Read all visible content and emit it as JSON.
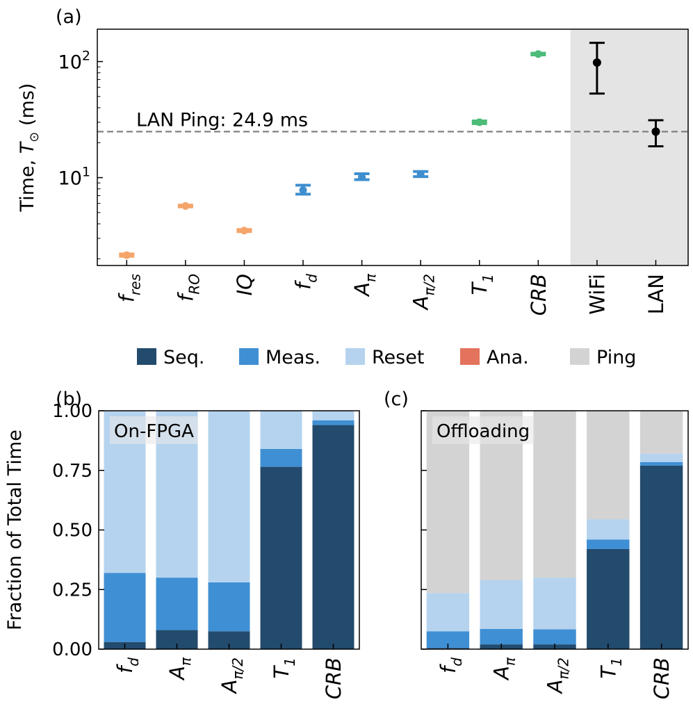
{
  "chart_data": [
    {
      "panel_label": "(a)",
      "type": "scatter",
      "xlabel": "",
      "ylabel_parts": [
        "Time, ",
        "T",
        "⊙",
        " (ms)"
      ],
      "yscale": "log",
      "ylim": [
        1.75,
        190
      ],
      "y_ticks": [
        {
          "value": 10,
          "base": "10",
          "exp": "1"
        },
        {
          "value": 100,
          "base": "10",
          "exp": "2"
        }
      ],
      "categories": [
        {
          "main": "f",
          "sub": "res",
          "italic": true
        },
        {
          "main": "f",
          "sub": "RO",
          "italic": true
        },
        {
          "main": "IQ",
          "sub": "",
          "italic": true
        },
        {
          "main": "f",
          "sub": "d",
          "italic": true
        },
        {
          "main": "A",
          "sub": "π",
          "italic": true
        },
        {
          "main": "A",
          "sub": "π/2",
          "italic": true
        },
        {
          "main": "T",
          "sub": "1",
          "italic": true
        },
        {
          "main": "CRB",
          "sub": "",
          "italic": true
        },
        {
          "main": "WiFi",
          "sub": "",
          "italic": false
        },
        {
          "main": "LAN",
          "sub": "",
          "italic": false
        }
      ],
      "points": [
        {
          "y": 2.15,
          "lo": 2.1,
          "hi": 2.2,
          "color": "#f5a46a"
        },
        {
          "y": 5.7,
          "lo": 5.6,
          "hi": 5.8,
          "color": "#f5a46a"
        },
        {
          "y": 3.5,
          "lo": 3.43,
          "hi": 3.57,
          "color": "#f5a46a"
        },
        {
          "y": 7.8,
          "lo": 7.2,
          "hi": 8.6,
          "color": "#3f8fcf"
        },
        {
          "y": 10.1,
          "lo": 9.6,
          "hi": 10.8,
          "color": "#3f8fcf"
        },
        {
          "y": 10.7,
          "lo": 10.2,
          "hi": 11.3,
          "color": "#3f8fcf"
        },
        {
          "y": 30.0,
          "lo": 29.2,
          "hi": 30.8,
          "color": "#4cbc78"
        },
        {
          "y": 116,
          "lo": 114,
          "hi": 118,
          "color": "#4cbc78"
        },
        {
          "y": 98,
          "lo": 53,
          "hi": 145,
          "color": "#000000"
        },
        {
          "y": 24.9,
          "lo": 18.6,
          "hi": 31.2,
          "color": "#000000"
        }
      ],
      "ping_line": {
        "value": 24.9,
        "label": "LAN Ping: 24.9 ms",
        "color": "#808080"
      },
      "shaded_categories": [
        "WiFi",
        "LAN"
      ]
    },
    {
      "panel_label": "(b)",
      "type": "bar",
      "stacked": true,
      "annotation": "On-FPGA",
      "ylabel": "Fraction of Total Time",
      "ylim": [
        0,
        1.0
      ],
      "y_ticks": [
        "0.00",
        "0.25",
        "0.50",
        "0.75",
        "1.00"
      ],
      "categories": [
        {
          "main": "f",
          "sub": "d"
        },
        {
          "main": "A",
          "sub": "π"
        },
        {
          "main": "A",
          "sub": "π/2"
        },
        {
          "main": "T",
          "sub": "1"
        },
        {
          "main": "CRB",
          "sub": ""
        }
      ],
      "series": [
        {
          "name": "Seq.",
          "color": "#234b6d",
          "values": [
            0.03,
            0.08,
            0.075,
            0.765,
            0.94
          ]
        },
        {
          "name": "Meas.",
          "color": "#3f8fd4",
          "values": [
            0.29,
            0.22,
            0.205,
            0.075,
            0.02
          ]
        },
        {
          "name": "Reset",
          "color": "#b5d3ee",
          "values": [
            0.68,
            0.7,
            0.72,
            0.16,
            0.04
          ]
        },
        {
          "name": "Ana.",
          "color": "#e3735c",
          "values": [
            0,
            0,
            0,
            0,
            0
          ]
        },
        {
          "name": "Ping",
          "color": "#d3d3d3",
          "values": [
            0,
            0,
            0,
            0,
            0
          ]
        }
      ]
    },
    {
      "panel_label": "(c)",
      "type": "bar",
      "stacked": true,
      "annotation": "Offloading",
      "ylim": [
        0,
        1.0
      ],
      "categories": [
        {
          "main": "f",
          "sub": "d"
        },
        {
          "main": "A",
          "sub": "π"
        },
        {
          "main": "A",
          "sub": "π/2"
        },
        {
          "main": "T",
          "sub": "1"
        },
        {
          "main": "CRB",
          "sub": ""
        }
      ],
      "series": [
        {
          "name": "Seq.",
          "color": "#234b6d",
          "values": [
            0.005,
            0.02,
            0.02,
            0.42,
            0.77
          ]
        },
        {
          "name": "Meas.",
          "color": "#3f8fd4",
          "values": [
            0.07,
            0.065,
            0.063,
            0.04,
            0.015
          ]
        },
        {
          "name": "Reset",
          "color": "#b5d3ee",
          "values": [
            0.16,
            0.205,
            0.217,
            0.085,
            0.035
          ]
        },
        {
          "name": "Ana.",
          "color": "#e3735c",
          "values": [
            0,
            0,
            0,
            0,
            0
          ]
        },
        {
          "name": "Ping",
          "color": "#d3d3d3",
          "values": [
            0.765,
            0.71,
            0.7,
            0.455,
            0.18
          ]
        }
      ]
    }
  ],
  "legend": [
    {
      "label": "Seq.",
      "color": "#234b6d"
    },
    {
      "label": "Meas.",
      "color": "#3f8fd4"
    },
    {
      "label": "Reset",
      "color": "#b5d3ee"
    },
    {
      "label": "Ana.",
      "color": "#e3735c"
    },
    {
      "label": "Ping",
      "color": "#d3d3d3"
    }
  ]
}
